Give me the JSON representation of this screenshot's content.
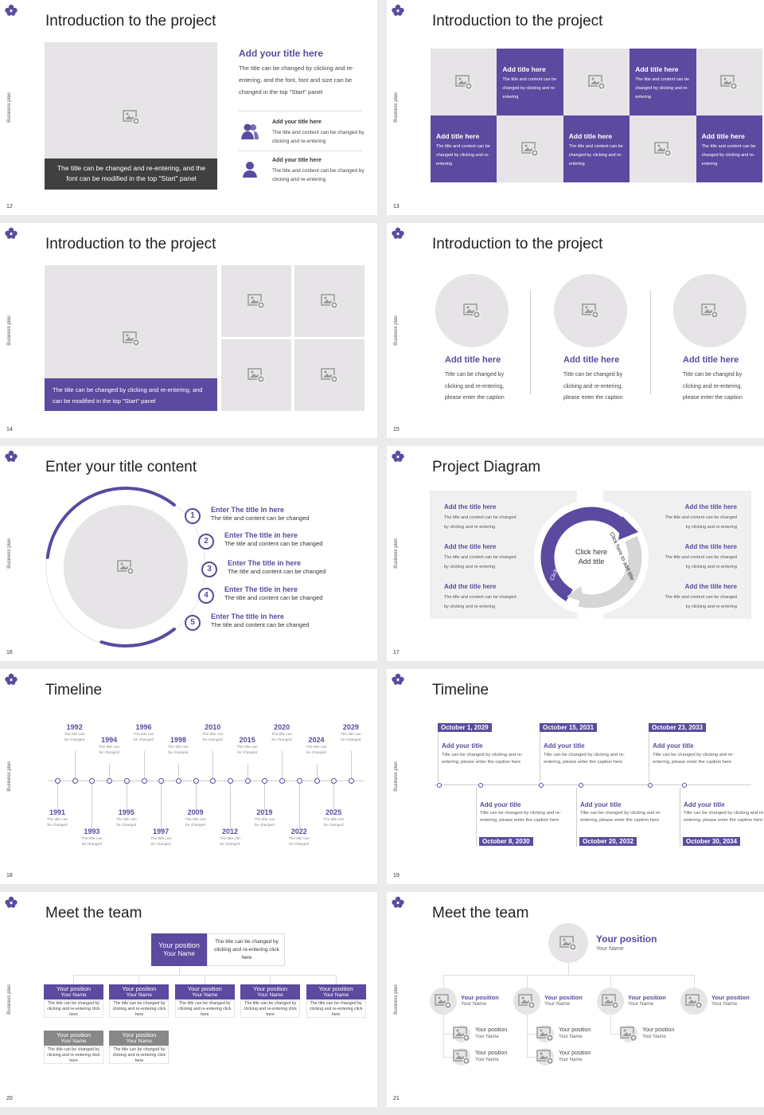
{
  "side_label": "Business plan",
  "slides": [
    {
      "number": 12,
      "title": "Introduction to the project",
      "caption": "The title can be changed and re-entering, and the font can be modified in the top \"Start\" panel",
      "heading": "Add your title here",
      "body": "The title can be changed by clicking and re-entering, and the font, font and size can be changed in the top \"Start\" panel",
      "items": [
        {
          "title": "Add your title here",
          "text": "The title and content can be changed by clicking and re-entering"
        },
        {
          "title": "Add your title here",
          "text": "The title and content can be changed by clicking and re-entering"
        }
      ]
    },
    {
      "number": 13,
      "title": "Introduction to the project",
      "cells": [
        {
          "title": "Add title here",
          "text": "The title and content can be changed by clicking and re-entering"
        },
        {
          "title": "Add title here",
          "text": "The title and content can be changed by clicking and re-entering"
        },
        {
          "title": "Add title here",
          "text": "The title and content can be changed by clicking and re-entering"
        },
        {
          "title": "Add title here",
          "text": "The title and content can be changed by clicking and re-entering"
        },
        {
          "title": "Add title here",
          "text": "The title and content can be changed by clicking and re-entering"
        }
      ]
    },
    {
      "number": 14,
      "title": "Introduction to the project",
      "caption": "The title can be changed by clicking and re-entering, and can be modified in the top \"Start\" panel"
    },
    {
      "number": 15,
      "title": "Introduction to the project",
      "columns": [
        {
          "title": "Add title here",
          "text": "Title can be changed by clicking and re-entering, please enter the caption"
        },
        {
          "title": "Add title here",
          "text": "Title can be changed by clicking and re-entering, please enter the caption"
        },
        {
          "title": "Add title here",
          "text": "Title can be changed by clicking and re-entering, please enter the caption"
        }
      ]
    },
    {
      "number": 16,
      "title": "Enter your title content",
      "items": [
        {
          "number": 1,
          "title": "Enter The title in here",
          "text": "The title and content can be changed"
        },
        {
          "number": 2,
          "title": "Enter The title in here",
          "text": "The title and content can be changed"
        },
        {
          "number": 3,
          "title": "Enter The title in here",
          "text": "The title and content can be changed"
        },
        {
          "number": 4,
          "title": "Enter The title in here",
          "text": "The title and content can be changed"
        },
        {
          "number": 5,
          "title": "Enter The title in here",
          "text": "The title and content can be changed"
        }
      ]
    },
    {
      "number": 17,
      "title": "Project Diagram",
      "center_text": "Click here Add title",
      "arc_labels": [
        "Click here to add title",
        "Click here to add title"
      ],
      "left_items": [
        {
          "title": "Add the title here",
          "text": "The title and content can be changed by clicking and re-entering"
        },
        {
          "title": "Add the title here",
          "text": "The title and content can be changed by clicking and re-entering"
        },
        {
          "title": "Add the title here",
          "text": "The title and content can be changed by clicking and re-entering"
        }
      ],
      "right_items": [
        {
          "title": "Add the title here",
          "text": "The title and content can be changed by clicking and re-entering"
        },
        {
          "title": "Add the title here",
          "text": "The title and content can be changed by clicking and re-entering"
        },
        {
          "title": "Add the title here",
          "text": "The title and content can be changed by clicking and re-entering"
        }
      ]
    },
    {
      "number": 18,
      "title": "Timeline",
      "events": [
        {
          "year": 1991,
          "text": "The title can be changed"
        },
        {
          "year": 1992,
          "text": "The title can be changed"
        },
        {
          "year": 1993,
          "text": "The title can be changed"
        },
        {
          "year": 1994,
          "text": "The title can be changed"
        },
        {
          "year": 1995,
          "text": "The title can be changed"
        },
        {
          "year": 1996,
          "text": "The title can be changed"
        },
        {
          "year": 1997,
          "text": "The title can be changed"
        },
        {
          "year": 1998,
          "text": "The title can be changed"
        },
        {
          "year": 2009,
          "text": "The title can be changed"
        },
        {
          "year": 2010,
          "text": "The title can be changed"
        },
        {
          "year": 2012,
          "text": "The title can be changed"
        },
        {
          "year": 2015,
          "text": "The title can be changed"
        },
        {
          "year": 2019,
          "text": "The title can be changed"
        },
        {
          "year": 2020,
          "text": "The title can be changed"
        },
        {
          "year": 2022,
          "text": "The title can be changed"
        },
        {
          "year": 2024,
          "text": "The title can be changed"
        },
        {
          "year": 2025,
          "text": "The title can be changed"
        },
        {
          "year": 2029,
          "text": "The title can be changed"
        }
      ]
    },
    {
      "number": 19,
      "title": "Timeline",
      "events": [
        {
          "date": "October 1, 2029",
          "title": "Add your title",
          "text": "Title can be changed by clicking and re-entering, please enter the caption here"
        },
        {
          "date": "October 8, 2030",
          "title": "Add your title",
          "text": "Title can be changed by clicking and re-entering, please enter the caption here"
        },
        {
          "date": "October 15, 2031",
          "title": "Add your title",
          "text": "Title can be changed by clicking and re-entering, please enter the caption here"
        },
        {
          "date": "October 20, 2032",
          "title": "Add your title",
          "text": "Title can be changed by clicking and re-entering, please enter the caption here"
        },
        {
          "date": "October 23, 2033",
          "title": "Add your title",
          "text": "Title can be changed by clicking and re-entering, please enter the caption here"
        },
        {
          "date": "October 30, 2034",
          "title": "Add your title",
          "text": "Title can be changed by clicking and re-entering, please enter the caption here"
        }
      ]
    },
    {
      "number": 20,
      "title": "Meet the team",
      "head": {
        "position": "Your position",
        "name": "Your Name",
        "text": "The title can be changed by clicking and re-entering click here"
      },
      "members": [
        {
          "position": "Your position",
          "name": "Your Name",
          "text": "The title can be changed by clicking and re-entering click here"
        },
        {
          "position": "Your position",
          "name": "Your Name",
          "text": "The title can be changed by clicking and re-entering click here"
        },
        {
          "position": "Your position",
          "name": "Your Name",
          "text": "The title can be changed by clicking and re-entering click here"
        },
        {
          "position": "Your position",
          "name": "Your Name",
          "text": "The title can be changed by clicking and re-entering click here"
        },
        {
          "position": "Your position",
          "name": "Your Name",
          "text": "The title can be changed by clicking and re-entering click here"
        },
        {
          "position": "Your position",
          "name": "Your Name",
          "text": "The title can be changed by clicking and re-entering click here"
        },
        {
          "position": "Your position",
          "name": "Your Name",
          "text": "The title can be changed by clicking and re-entering click here"
        }
      ]
    },
    {
      "number": 21,
      "title": "Meet the team",
      "head": {
        "position": "Your position",
        "name": "Your Name"
      },
      "members": [
        {
          "position": "Your position",
          "name": "Your Name",
          "reports": [
            {
              "position": "Your position",
              "name": "Your Name"
            },
            {
              "position": "Your position",
              "name": "Your Name"
            }
          ]
        },
        {
          "position": "Your position",
          "name": "Your Name",
          "reports": [
            {
              "position": "Your position",
              "name": "Your Name"
            },
            {
              "position": "Your position",
              "name": "Your Name"
            }
          ]
        },
        {
          "position": "Your position",
          "name": "Your Name",
          "reports": [
            {
              "position": "Your position",
              "name": "Your Name"
            }
          ]
        },
        {
          "position": "Your position",
          "name": "Your Name",
          "reports": []
        }
      ]
    }
  ]
}
